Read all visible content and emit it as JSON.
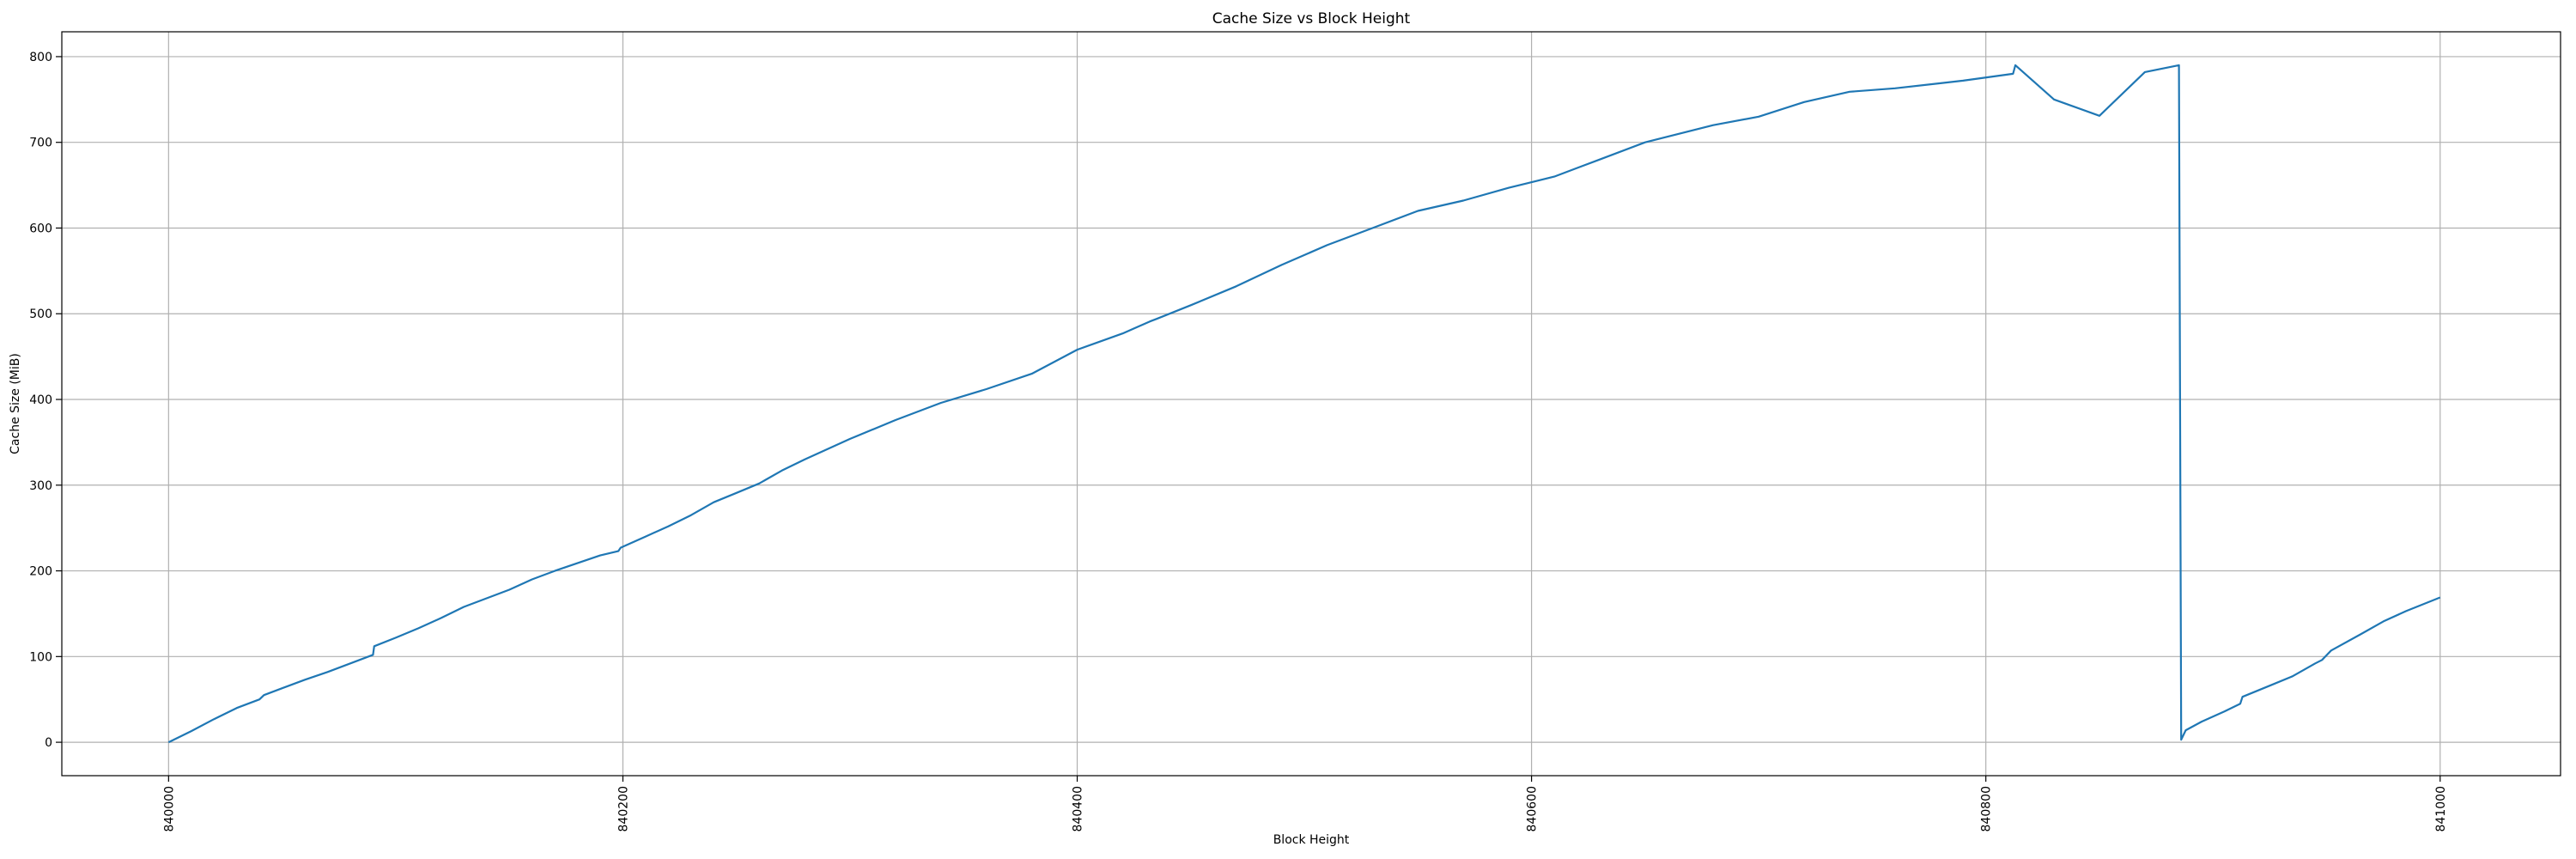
{
  "chart_data": {
    "type": "line",
    "title": "Cache Size vs Block Height",
    "xlabel": "Block Height",
    "ylabel": "Cache Size (MiB)",
    "xlim": [
      839953,
      841053
    ],
    "ylim": [
      -39,
      829
    ],
    "xticks": [
      840000,
      840200,
      840400,
      840600,
      840800,
      841000
    ],
    "yticks": [
      0,
      100,
      200,
      300,
      400,
      500,
      600,
      700,
      800
    ],
    "grid": true,
    "series": [
      {
        "color": "#1f77b4",
        "x": [
          840000,
          840010,
          840020,
          840030,
          840040,
          840042,
          840050,
          840060,
          840070,
          840080,
          840090,
          840090.5,
          840100,
          840110,
          840120,
          840130,
          840140,
          840150,
          840160,
          840170,
          840180,
          840190,
          840198,
          840199,
          840210,
          840220,
          840230,
          840240,
          840250,
          840260,
          840270,
          840280,
          840300,
          840320,
          840340,
          840360,
          840380,
          840400,
          840420,
          840432,
          840435,
          840450,
          840470,
          840490,
          840510,
          840530,
          840550,
          840570,
          840590,
          840610,
          840620,
          840630,
          840650,
          840680,
          840700,
          840720,
          840740,
          840760,
          840780,
          840790,
          840812,
          840813,
          840830,
          840850,
          840870,
          840885,
          840886,
          840888,
          840895,
          840905,
          840912,
          840913,
          840925,
          840935,
          840945,
          840948,
          840952,
          840965,
          840975,
          840985,
          841000
        ],
        "y": [
          0,
          13,
          27,
          40,
          50,
          55,
          63,
          73,
          82,
          92,
          102,
          112,
          122,
          133,
          145,
          158,
          168,
          178,
          190,
          200,
          209,
          218,
          223,
          227,
          240,
          252,
          265,
          280,
          291,
          302,
          317,
          330,
          354,
          376,
          396,
          412,
          430,
          458,
          477,
          491,
          494,
          510,
          532,
          557,
          580,
          600,
          620,
          632,
          647,
          660,
          670,
          680,
          700,
          720,
          730,
          747,
          759,
          763,
          769,
          772,
          780,
          790,
          750,
          731,
          782,
          790,
          3,
          14,
          24,
          36,
          45,
          53,
          66,
          77,
          92,
          96,
          107,
          126,
          141,
          153,
          169
        ]
      }
    ]
  }
}
